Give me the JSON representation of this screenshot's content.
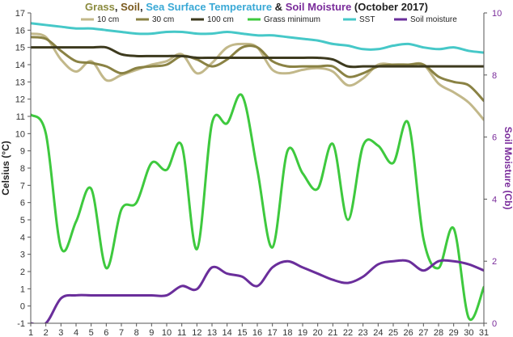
{
  "chart_data": {
    "type": "line",
    "title_parts": [
      {
        "text": "Grass",
        "color": "#8b8b3e"
      },
      {
        "text": ", ",
        "color": "#222222"
      },
      {
        "text": "Soil",
        "color": "#7a5a1e"
      },
      {
        "text": ", ",
        "color": "#222222"
      },
      {
        "text": "Sea Surface Temperature",
        "color": "#3aa9d6"
      },
      {
        "text": " & ",
        "color": "#222222"
      },
      {
        "text": "Soil Moisture",
        "color": "#7a2c9b"
      },
      {
        "text": " (October 2017)",
        "color": "#222222"
      }
    ],
    "ylabel": "Celsius (°C)",
    "y2label": "Soil Moisture (Cb)",
    "ylabel_color": "#222222",
    "y2label_color": "#7a2c9b",
    "x": [
      1,
      2,
      3,
      4,
      5,
      6,
      7,
      8,
      9,
      10,
      11,
      12,
      13,
      14,
      15,
      16,
      17,
      18,
      19,
      20,
      21,
      22,
      23,
      24,
      25,
      26,
      27,
      28,
      29,
      30,
      31
    ],
    "xlim": [
      1,
      31
    ],
    "ylim": [
      -1,
      17
    ],
    "y2lim": [
      0,
      10
    ],
    "yticks": [
      -1,
      0,
      1,
      2,
      3,
      4,
      5,
      6,
      7,
      8,
      9,
      10,
      11,
      12,
      13,
      14,
      15,
      16,
      17
    ],
    "y2ticks": [
      0,
      2,
      4,
      6,
      8,
      10
    ],
    "grid": false,
    "legend_position": "top",
    "series": [
      {
        "name": "10 cm",
        "color": "#c2b88a",
        "axis": "left",
        "values": [
          15.8,
          15.6,
          14.3,
          13.6,
          14.2,
          13.1,
          13.4,
          13.7,
          14.0,
          14.2,
          14.6,
          13.5,
          14.1,
          15.0,
          15.2,
          15.0,
          13.7,
          13.5,
          13.7,
          13.8,
          13.6,
          12.8,
          13.2,
          14.0,
          14.0,
          14.0,
          14.0,
          12.9,
          12.4,
          11.8,
          10.8
        ]
      },
      {
        "name": "30 cm",
        "color": "#8a8244",
        "axis": "left",
        "values": [
          15.6,
          15.5,
          14.8,
          14.2,
          14.1,
          13.9,
          13.5,
          13.8,
          13.9,
          14.0,
          14.5,
          14.3,
          13.9,
          14.3,
          15.0,
          15.0,
          14.2,
          13.9,
          13.9,
          13.9,
          13.9,
          13.3,
          13.5,
          13.9,
          14.0,
          14.0,
          14.0,
          13.3,
          13.0,
          12.8,
          11.9
        ]
      },
      {
        "name": "100 cm",
        "color": "#3d3a1e",
        "axis": "left",
        "values": [
          15.0,
          15.0,
          15.0,
          15.0,
          15.0,
          15.0,
          14.6,
          14.5,
          14.5,
          14.5,
          14.5,
          14.4,
          14.4,
          14.4,
          14.4,
          14.4,
          14.4,
          14.4,
          14.4,
          14.4,
          14.3,
          13.9,
          13.9,
          13.9,
          13.9,
          13.9,
          13.9,
          13.9,
          13.9,
          13.9,
          13.9
        ]
      },
      {
        "name": "Grass minimum",
        "color": "#3ec93e",
        "axis": "left",
        "values": [
          11.1,
          10.0,
          3.4,
          4.9,
          6.8,
          2.2,
          5.6,
          6.0,
          8.3,
          7.9,
          9.3,
          3.3,
          10.6,
          10.6,
          12.2,
          7.9,
          3.4,
          9.0,
          7.7,
          6.8,
          9.4,
          5.0,
          9.3,
          9.3,
          8.3,
          10.6,
          3.9,
          2.2,
          4.5,
          -0.7,
          1.1
        ]
      },
      {
        "name": "SST",
        "color": "#46c8c8",
        "axis": "left",
        "values": [
          16.4,
          16.3,
          16.2,
          16.1,
          16.1,
          16.0,
          15.9,
          15.8,
          15.8,
          15.9,
          15.9,
          15.8,
          15.8,
          15.9,
          15.8,
          15.7,
          15.7,
          15.6,
          15.5,
          15.4,
          15.2,
          15.1,
          14.9,
          14.9,
          15.1,
          15.2,
          15.0,
          14.9,
          15.0,
          14.8,
          14.7
        ]
      },
      {
        "name": "Soil moisture",
        "color": "#6a2e9b",
        "axis": "right",
        "values": [
          0.0,
          0.0,
          0.8,
          0.9,
          0.9,
          0.9,
          0.9,
          0.9,
          0.9,
          0.9,
          1.2,
          1.1,
          1.8,
          1.6,
          1.5,
          1.2,
          1.8,
          2.0,
          1.8,
          1.6,
          1.4,
          1.3,
          1.5,
          1.9,
          2.0,
          2.0,
          1.7,
          2.0,
          2.0,
          1.9,
          1.7
        ]
      }
    ]
  }
}
